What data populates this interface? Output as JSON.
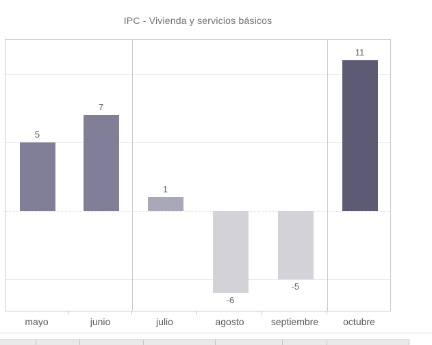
{
  "page": {
    "title": "IPC - Vivienda y servicios básicos"
  },
  "chart_data": {
    "type": "bar",
    "title": "IPC - Vivienda y servicios básicos",
    "categories": [
      "mayo",
      "junio",
      "julio",
      "agosto",
      "septiembre",
      "octubre"
    ],
    "values": [
      5,
      7,
      1,
      -6,
      -5,
      11
    ],
    "data_labels": [
      "5",
      "7",
      "1",
      "-6",
      "-5",
      "11"
    ],
    "bar_colors": [
      "#817f97",
      "#817f97",
      "#a9a8b8",
      "#d3d2d8",
      "#d3d2d8",
      "#5d5b73"
    ],
    "xlabel": "",
    "ylabel": "",
    "ylim": [
      -7.4,
      12.5
    ],
    "gridline_values": [
      10,
      5,
      -5
    ],
    "zero_line_style": "dotted",
    "pane_dividers_after": [
      "junio",
      "septiembre"
    ],
    "legend": "none",
    "grid": "on"
  },
  "colors": {
    "bar_strong": "#5d5b73",
    "bar_medium": "#817f97",
    "bar_light": "#a9a8b8",
    "bar_negative": "#d3d2d8",
    "title_text": "#6e6e6e",
    "axis_text": "#575757",
    "value_text": "#5f5f5f",
    "panel_border": "#c9c9c9",
    "gridline": "#e7e7e7",
    "strip_background": "#e9e9e9",
    "strip_divider": "#c4c4c4"
  }
}
